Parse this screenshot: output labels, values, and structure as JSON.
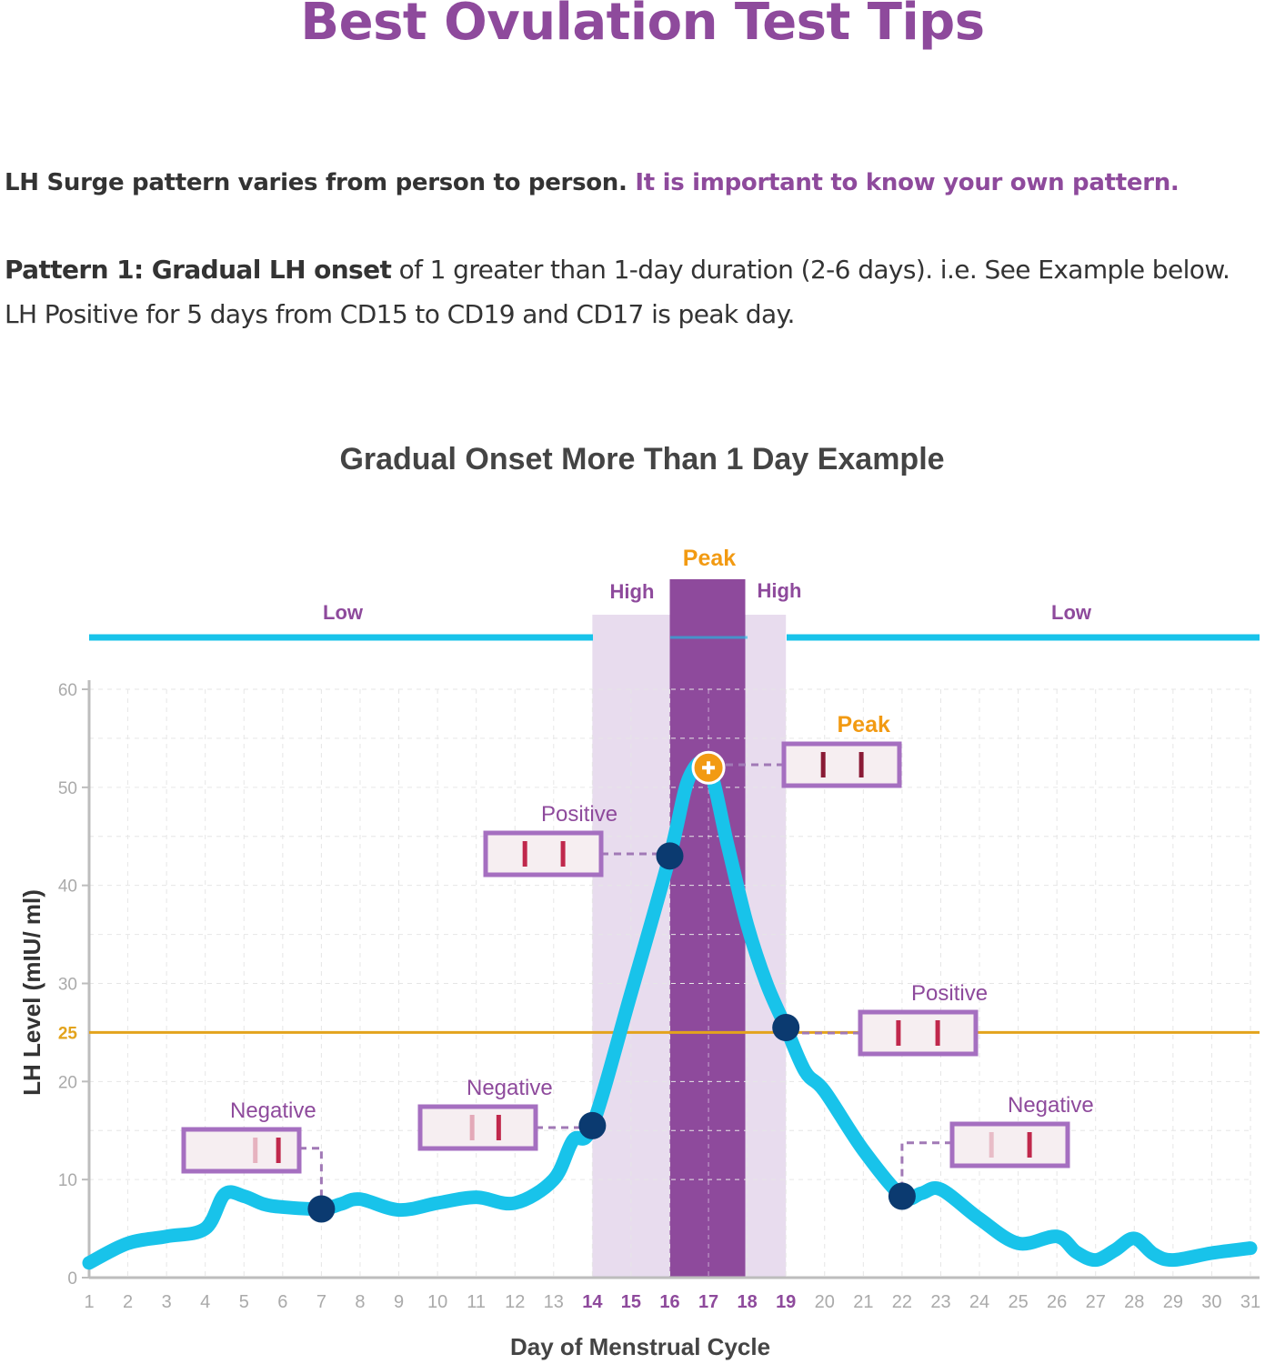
{
  "header": {
    "title": "Best Ovulation Test Tips"
  },
  "intro": {
    "lead": "LH Surge pattern varies from person to person.",
    "emphasis": "It is important to know your own pattern."
  },
  "pattern": {
    "label": "Pattern 1: Gradual LH onset",
    "line1_rest": " of 1 greater than 1-day duration (2-6 days). i.e. See Example below.",
    "line2": "LH Positive for 5 days from CD15 to CD19 and CD17 is peak day."
  },
  "colors": {
    "curve": "#18c3ea",
    "purple": "#8e4a9c",
    "band_light": "#e8dcee",
    "threshold": "#e3a31c",
    "dot": "#0b3a70",
    "peak": "#f29a12"
  },
  "chart_data": {
    "type": "line",
    "title": "Gradual Onset More Than 1 Day Example",
    "xlabel": "Day of Menstrual Cycle",
    "ylabel": "LH Level (mIU/ ml)",
    "xlim": [
      1,
      31
    ],
    "ylim": [
      0,
      60
    ],
    "x_ticks": [
      "1",
      "2",
      "3",
      "4",
      "5",
      "6",
      "7",
      "8",
      "9",
      "10",
      "11",
      "12",
      "13",
      "14",
      "15",
      "16",
      "17",
      "18",
      "19",
      "20",
      "21",
      "22",
      "23",
      "24",
      "25",
      "26",
      "27",
      "28",
      "29",
      "30",
      "31"
    ],
    "highlighted_x_ticks": [
      "14",
      "15",
      "16",
      "17",
      "18",
      "19"
    ],
    "y_ticks": [
      "0",
      "10",
      "20",
      "30",
      "40",
      "50",
      "60"
    ],
    "threshold": {
      "value": 25,
      "label": "25"
    },
    "series": [
      {
        "name": "LH Level",
        "x": [
          1,
          2,
          3,
          4,
          4.5,
          5,
          5.5,
          6,
          7,
          7.5,
          8,
          9,
          10,
          11,
          12,
          13,
          13.5,
          14,
          15,
          16,
          16.5,
          17,
          17.5,
          18,
          18.5,
          19,
          19.5,
          20,
          21,
          22,
          22.5,
          23,
          24,
          25,
          26,
          26.5,
          27,
          27.5,
          28,
          28.5,
          29,
          30,
          31
        ],
        "y": [
          1.5,
          3.5,
          4.2,
          5,
          8.5,
          8.3,
          7.5,
          7.2,
          7,
          7.5,
          8,
          6.9,
          7.6,
          8.2,
          7.6,
          10,
          14,
          15.5,
          29,
          43,
          51,
          52,
          44,
          36,
          30,
          25.5,
          21,
          19,
          13,
          8.3,
          8.6,
          9,
          6,
          3.5,
          4.2,
          2.6,
          1.8,
          2.8,
          4,
          2.4,
          1.8,
          2.5,
          3
        ]
      }
    ],
    "bands": [
      {
        "label": "High",
        "from": 14,
        "to": 19,
        "kind": "high"
      },
      {
        "label": "Peak",
        "from": 16,
        "to": 17.95,
        "kind": "peak"
      }
    ],
    "level_bar": [
      {
        "label": "Low",
        "from": 1,
        "to": 14
      },
      {
        "label": "Low",
        "from": 19,
        "to": 31
      }
    ],
    "high_labels": [
      "High",
      "High"
    ],
    "peak_top_label": "Peak",
    "markers": [
      {
        "day": 7,
        "value": 7,
        "result": "Negative",
        "kind": "negative"
      },
      {
        "day": 14,
        "value": 15.5,
        "result": "Negative",
        "kind": "negative"
      },
      {
        "day": 16,
        "value": 43,
        "result": "Positive",
        "kind": "positive"
      },
      {
        "day": 17,
        "value": 52,
        "result": "Peak",
        "kind": "peak"
      },
      {
        "day": 19,
        "value": 25.5,
        "result": "Positive",
        "kind": "positive"
      },
      {
        "day": 22,
        "value": 8.3,
        "result": "Negative",
        "kind": "negative"
      }
    ]
  }
}
